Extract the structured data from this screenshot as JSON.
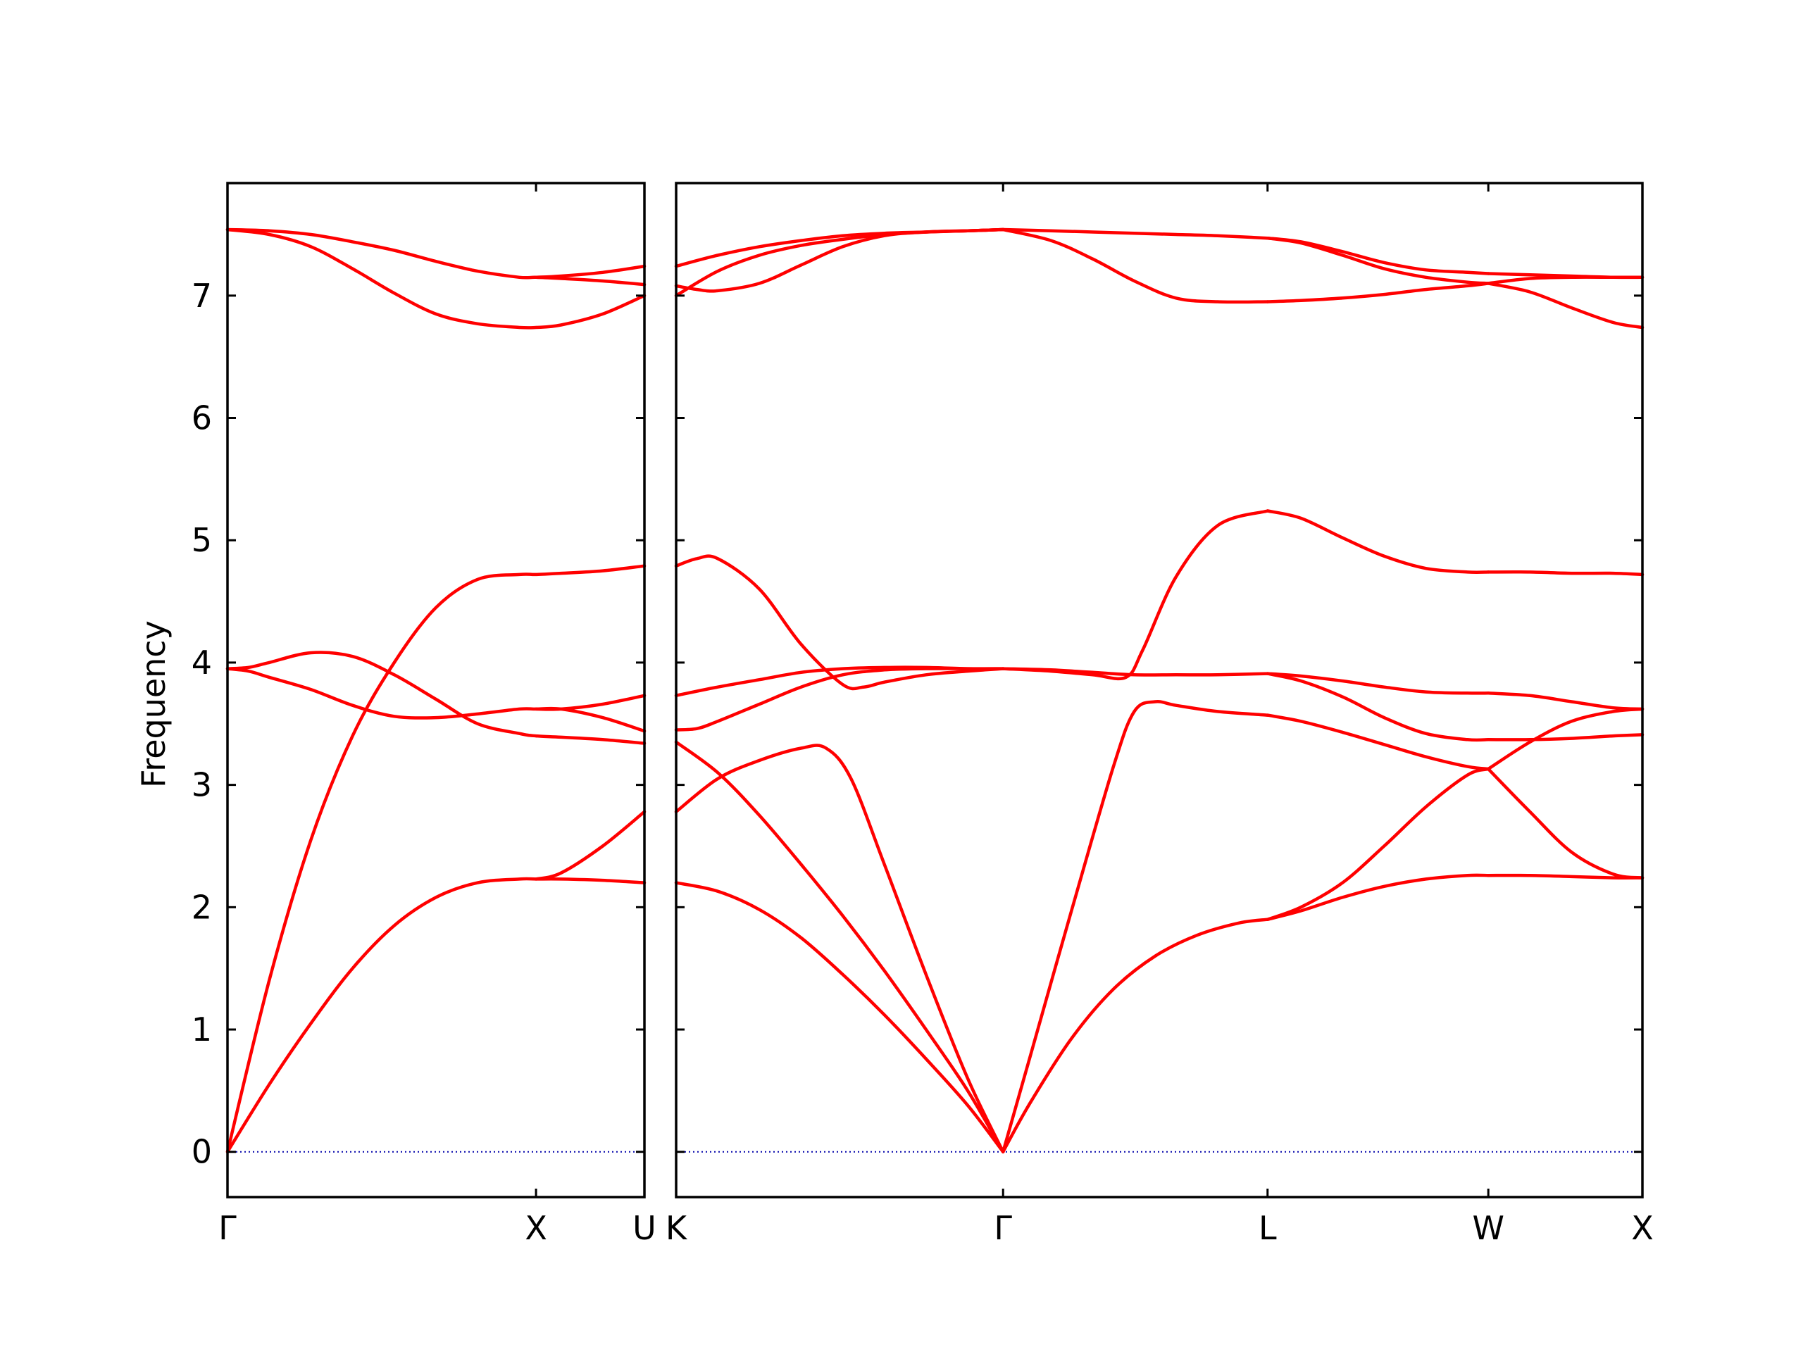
{
  "chart_data": {
    "type": "line",
    "ylabel": "Frequency",
    "ylim": [
      -0.37,
      7.92
    ],
    "yticks": [
      0,
      1,
      2,
      3,
      4,
      5,
      6,
      7
    ],
    "grid": false,
    "colors": {
      "bands": "#ff0000",
      "zero_line": "#0000aa",
      "frame": "#000000"
    },
    "panels": [
      {
        "x_range": [
          0,
          1.0
        ],
        "ticks": [
          {
            "x": 0.0,
            "label": "Γ"
          },
          {
            "x": 0.74,
            "label": "X"
          },
          {
            "x": 1.0,
            "label": "U"
          }
        ],
        "series": [
          {
            "x": [
              0,
              0.1,
              0.2,
              0.3,
              0.4,
              0.5,
              0.6,
              0.7,
              0.74,
              0.8,
              0.9,
              1.0
            ],
            "values": [
              0,
              0.55,
              1.05,
              1.5,
              1.85,
              2.08,
              2.2,
              2.23,
              2.23,
              2.23,
              2.22,
              2.2
            ]
          },
          {
            "x": [
              0,
              0.1,
              0.2,
              0.3,
              0.4,
              0.5,
              0.6,
              0.7,
              0.74,
              0.8,
              0.9,
              1.0
            ],
            "values": [
              0,
              1.4,
              2.55,
              3.4,
              4.0,
              4.45,
              4.68,
              4.72,
              4.72,
              4.73,
              4.75,
              4.79
            ]
          },
          {
            "x": [
              0,
              0.05,
              0.1,
              0.2,
              0.3,
              0.4,
              0.5,
              0.6,
              0.7,
              0.74,
              0.8,
              0.9,
              1.0
            ],
            "values": [
              3.95,
              3.96,
              4.0,
              4.08,
              4.05,
              3.9,
              3.7,
              3.5,
              3.42,
              3.4,
              3.39,
              3.37,
              3.34
            ]
          },
          {
            "x": [
              0,
              0.05,
              0.1,
              0.2,
              0.3,
              0.4,
              0.5,
              0.6,
              0.7,
              0.74,
              0.8,
              0.9,
              1.0
            ],
            "values": [
              3.95,
              3.93,
              3.88,
              3.78,
              3.65,
              3.56,
              3.55,
              3.58,
              3.62,
              3.62,
              3.62,
              3.55,
              3.44
            ]
          },
          {
            "x": [
              0,
              0.1,
              0.2,
              0.3,
              0.4,
              0.5,
              0.6,
              0.7,
              0.74,
              0.8,
              0.9,
              1.0
            ],
            "values": [
              7.54,
              7.53,
              7.5,
              7.44,
              7.37,
              7.28,
              7.2,
              7.15,
              7.15,
              7.14,
              7.12,
              7.09
            ]
          },
          {
            "x": [
              0,
              0.1,
              0.2,
              0.3,
              0.4,
              0.5,
              0.6,
              0.7,
              0.74,
              0.8,
              0.9,
              1.0
            ],
            "values": [
              7.54,
              7.5,
              7.4,
              7.22,
              7.02,
              6.85,
              6.77,
              6.74,
              6.74,
              6.76,
              6.85,
              7.0
            ]
          },
          {
            "x": [
              0.74,
              0.8,
              0.9,
              1.0
            ],
            "values": [
              2.23,
              2.28,
              2.5,
              2.78
            ]
          },
          {
            "x": [
              0.74,
              0.8,
              0.9,
              1.0
            ],
            "values": [
              3.62,
              3.62,
              3.66,
              3.73
            ]
          },
          {
            "x": [
              0.74,
              0.8,
              0.9,
              1.0
            ],
            "values": [
              7.15,
              7.16,
              7.19,
              7.24
            ]
          }
        ]
      },
      {
        "x_range": [
          1.0,
          3.32
        ],
        "ticks": [
          {
            "x": 1.0,
            "label": "K"
          },
          {
            "x": 1.785,
            "label": "Γ"
          },
          {
            "x": 2.42,
            "label": "L"
          },
          {
            "x": 2.95,
            "label": "W"
          },
          {
            "x": 3.32,
            "label": "X"
          }
        ],
        "series": [
          {
            "x": [
              1.0,
              1.1,
              1.2,
              1.3,
              1.4,
              1.5,
              1.6,
              1.7,
              1.785
            ],
            "values": [
              2.2,
              2.13,
              1.98,
              1.75,
              1.45,
              1.12,
              0.76,
              0.38,
              0
            ]
          },
          {
            "x": [
              1.0,
              1.1,
              1.2,
              1.3,
              1.4,
              1.5,
              1.6,
              1.7,
              1.785
            ],
            "values": [
              3.35,
              3.1,
              2.75,
              2.35,
              1.93,
              1.48,
              1.0,
              0.5,
              0
            ]
          },
          {
            "x": [
              1.0,
              1.1,
              1.2,
              1.3,
              1.36,
              1.42,
              1.5,
              1.6,
              1.7,
              1.785
            ],
            "values": [
              2.78,
              3.05,
              3.2,
              3.3,
              3.3,
              3.05,
              2.35,
              1.45,
              0.6,
              0
            ]
          },
          {
            "x": [
              1.0,
              1.05,
              1.1,
              1.2,
              1.3,
              1.4,
              1.45,
              1.5,
              1.6,
              1.7,
              1.785
            ],
            "values": [
              4.79,
              4.85,
              4.85,
              4.6,
              4.15,
              3.82,
              3.8,
              3.84,
              3.9,
              3.93,
              3.95
            ]
          },
          {
            "x": [
              1.0,
              1.05,
              1.1,
              1.2,
              1.3,
              1.4,
              1.5,
              1.6,
              1.7,
              1.785
            ],
            "values": [
              3.45,
              3.46,
              3.52,
              3.66,
              3.8,
              3.9,
              3.94,
              3.95,
              3.95,
              3.95
            ]
          },
          {
            "x": [
              1.0,
              1.1,
              1.2,
              1.3,
              1.4,
              1.5,
              1.6,
              1.7,
              1.785
            ],
            "values": [
              3.73,
              3.8,
              3.86,
              3.92,
              3.95,
              3.96,
              3.96,
              3.95,
              3.95
            ]
          },
          {
            "x": [
              1.0,
              1.05,
              1.1,
              1.2,
              1.3,
              1.4,
              1.5,
              1.6,
              1.7,
              1.785
            ],
            "values": [
              7.08,
              7.05,
              7.04,
              7.1,
              7.25,
              7.4,
              7.49,
              7.52,
              7.53,
              7.54
            ]
          },
          {
            "x": [
              1.0,
              1.1,
              1.2,
              1.3,
              1.4,
              1.5,
              1.6,
              1.7,
              1.785
            ],
            "values": [
              7.0,
              7.2,
              7.33,
              7.41,
              7.46,
              7.5,
              7.52,
              7.53,
              7.54
            ]
          },
          {
            "x": [
              1.0,
              1.1,
              1.2,
              1.3,
              1.4,
              1.5,
              1.6,
              1.7,
              1.785
            ],
            "values": [
              7.24,
              7.33,
              7.4,
              7.45,
              7.49,
              7.51,
              7.52,
              7.53,
              7.54
            ]
          },
          {
            "x": [
              1.785,
              1.85,
              1.95,
              2.05,
              2.1,
              2.15,
              2.2,
              2.3,
              2.42
            ],
            "values": [
              0,
              0.78,
              1.98,
              3.15,
              3.6,
              3.68,
              3.65,
              3.6,
              3.57
            ]
          },
          {
            "x": [
              1.785,
              1.85,
              1.95,
              2.05,
              2.15,
              2.25,
              2.35,
              2.42
            ],
            "values": [
              0,
              0.4,
              0.93,
              1.33,
              1.6,
              1.77,
              1.87,
              1.9
            ]
          },
          {
            "x": [
              1.785,
              1.9,
              2.0,
              2.08,
              2.12,
              2.2,
              2.3,
              2.42
            ],
            "values": [
              3.95,
              3.93,
              3.9,
              3.88,
              4.1,
              4.7,
              5.12,
              5.24
            ]
          },
          {
            "x": [
              1.785,
              1.9,
              2.0,
              2.1,
              2.2,
              2.3,
              2.42
            ],
            "values": [
              3.95,
              3.94,
              3.92,
              3.9,
              3.9,
              3.9,
              3.91
            ]
          },
          {
            "x": [
              1.785,
              1.9,
              2.0,
              2.1,
              2.2,
              2.3,
              2.42
            ],
            "values": [
              7.54,
              7.45,
              7.3,
              7.12,
              6.98,
              6.95,
              6.95
            ]
          },
          {
            "x": [
              1.785,
              1.9,
              2.0,
              2.1,
              2.2,
              2.3,
              2.42
            ],
            "values": [
              7.54,
              7.53,
              7.52,
              7.51,
              7.5,
              7.49,
              7.47
            ]
          },
          {
            "x": [
              2.42,
              2.5,
              2.6,
              2.7,
              2.8,
              2.9,
              2.95
            ],
            "values": [
              1.9,
              2.0,
              2.2,
              2.5,
              2.82,
              3.08,
              3.13
            ]
          },
          {
            "x": [
              2.42,
              2.5,
              2.6,
              2.7,
              2.8,
              2.9,
              2.95
            ],
            "values": [
              1.9,
              1.97,
              2.08,
              2.17,
              2.23,
              2.26,
              2.26
            ]
          },
          {
            "x": [
              2.42,
              2.5,
              2.6,
              2.7,
              2.8,
              2.9,
              2.95
            ],
            "values": [
              3.57,
              3.52,
              3.43,
              3.33,
              3.23,
              3.15,
              3.13
            ]
          },
          {
            "x": [
              2.42,
              2.5,
              2.6,
              2.7,
              2.8,
              2.9,
              2.95
            ],
            "values": [
              3.91,
              3.85,
              3.72,
              3.55,
              3.42,
              3.37,
              3.37
            ]
          },
          {
            "x": [
              2.42,
              2.5,
              2.6,
              2.7,
              2.8,
              2.9,
              2.95
            ],
            "values": [
              3.91,
              3.89,
              3.85,
              3.8,
              3.76,
              3.75,
              3.75
            ]
          },
          {
            "x": [
              2.42,
              2.5,
              2.6,
              2.7,
              2.8,
              2.9,
              2.95
            ],
            "values": [
              5.24,
              5.18,
              5.02,
              4.87,
              4.77,
              4.74,
              4.74
            ]
          },
          {
            "x": [
              2.42,
              2.5,
              2.6,
              2.7,
              2.8,
              2.9,
              2.95
            ],
            "values": [
              6.95,
              6.96,
              6.98,
              7.01,
              7.05,
              7.08,
              7.1
            ]
          },
          {
            "x": [
              2.42,
              2.5,
              2.6,
              2.7,
              2.8,
              2.9,
              2.95
            ],
            "values": [
              7.47,
              7.43,
              7.33,
              7.22,
              7.15,
              7.11,
              7.1
            ]
          },
          {
            "x": [
              2.42,
              2.5,
              2.6,
              2.7,
              2.8,
              2.9,
              2.95
            ],
            "values": [
              7.47,
              7.44,
              7.36,
              7.27,
              7.21,
              7.19,
              7.18
            ]
          },
          {
            "x": [
              2.95,
              3.05,
              3.15,
              3.25,
              3.32
            ],
            "values": [
              3.13,
              3.35,
              3.52,
              3.6,
              3.62
            ]
          },
          {
            "x": [
              2.95,
              3.05,
              3.15,
              3.25,
              3.32
            ],
            "values": [
              3.13,
              2.78,
              2.45,
              2.27,
              2.24
            ]
          },
          {
            "x": [
              2.95,
              3.05,
              3.15,
              3.25,
              3.32
            ],
            "values": [
              3.37,
              3.37,
              3.38,
              3.4,
              3.41
            ]
          },
          {
            "x": [
              2.95,
              3.05,
              3.15,
              3.25,
              3.32
            ],
            "values": [
              3.75,
              3.73,
              3.68,
              3.63,
              3.62
            ]
          },
          {
            "x": [
              2.95,
              3.05,
              3.15,
              3.25,
              3.32
            ],
            "values": [
              2.26,
              2.26,
              2.25,
              2.24,
              2.24
            ]
          },
          {
            "x": [
              2.95,
              3.05,
              3.15,
              3.25,
              3.32
            ],
            "values": [
              4.74,
              4.74,
              4.73,
              4.73,
              4.72
            ]
          },
          {
            "x": [
              2.95,
              3.05,
              3.15,
              3.25,
              3.32
            ],
            "values": [
              7.1,
              7.03,
              6.9,
              6.78,
              6.74
            ]
          },
          {
            "x": [
              2.95,
              3.05,
              3.15,
              3.25,
              3.32
            ],
            "values": [
              7.1,
              7.14,
              7.15,
              7.15,
              7.15
            ]
          },
          {
            "x": [
              2.95,
              3.05,
              3.15,
              3.25,
              3.32
            ],
            "values": [
              7.18,
              7.17,
              7.16,
              7.15,
              7.15
            ]
          }
        ]
      }
    ]
  }
}
